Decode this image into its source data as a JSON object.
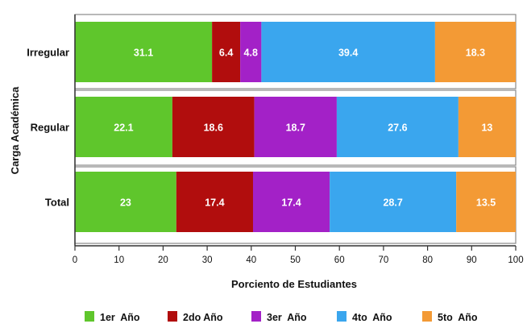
{
  "chart_data": {
    "type": "bar",
    "orientation": "horizontal",
    "stacked": true,
    "xlabel": "Porciento de Estudiantes",
    "ylabel": "Carga Académica",
    "xlim": [
      0,
      100
    ],
    "xticks": [
      "0",
      "10",
      "20",
      "30",
      "40",
      "50",
      "60",
      "70",
      "80",
      "90",
      "100"
    ],
    "categories": [
      "Irregular",
      "Regular",
      "Total"
    ],
    "series": [
      {
        "name": "1er  Año",
        "color": "#5fc62c",
        "values": [
          31.1,
          22.1,
          23
        ],
        "labels": [
          "31.1",
          "22.1",
          "23"
        ]
      },
      {
        "name": "2do Año",
        "color": "#b10d0d",
        "values": [
          6.4,
          18.6,
          17.4
        ],
        "labels": [
          "6.4",
          "18.6",
          "17.4"
        ]
      },
      {
        "name": "3er  Año",
        "color": "#a321c7",
        "values": [
          4.8,
          18.7,
          17.4
        ],
        "labels": [
          "4.8",
          "18.7",
          "17.4"
        ]
      },
      {
        "name": "4to  Año",
        "color": "#3aa6ee",
        "values": [
          39.4,
          27.6,
          28.7
        ],
        "labels": [
          "39.4",
          "27.6",
          "28.7"
        ]
      },
      {
        "name": "5to  Año",
        "color": "#f39a35",
        "values": [
          18.3,
          13,
          13.5
        ],
        "labels": [
          "18.3",
          "13",
          "13.5"
        ]
      }
    ],
    "grid": false,
    "legend_position": "bottom"
  }
}
